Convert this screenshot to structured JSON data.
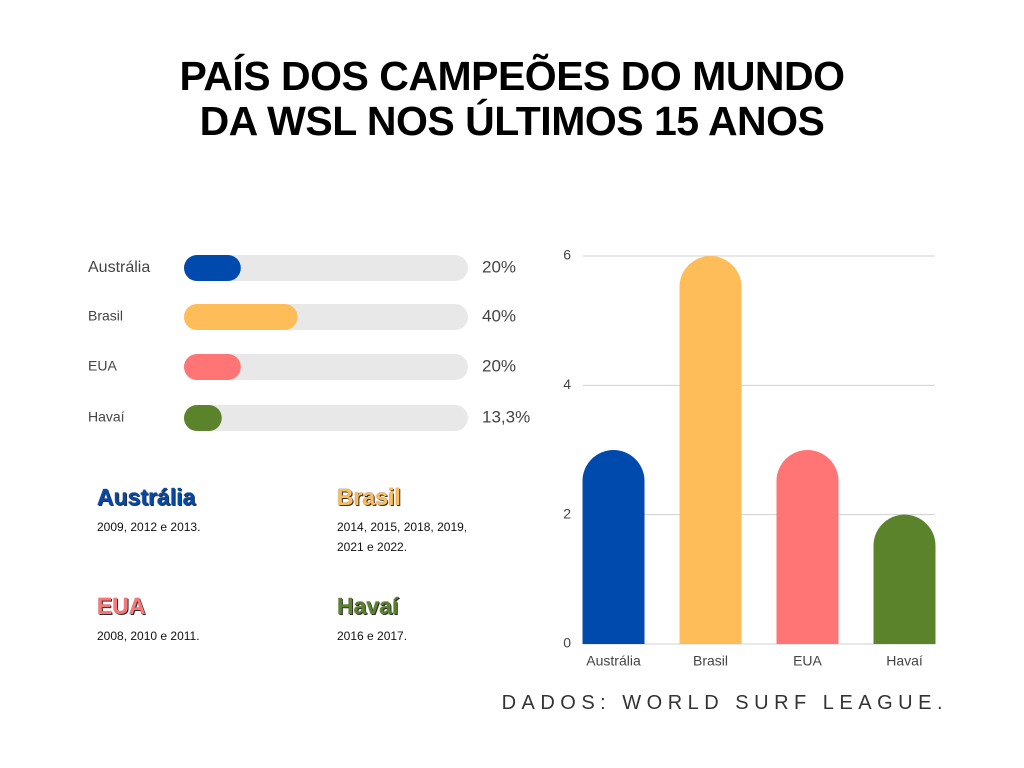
{
  "title": "PAÍS DOS CAMPEÕES DO MUNDO DA WSL NOS ÚLTIMOS 15 ANOS",
  "chart_data": [
    {
      "type": "progress",
      "categories": [
        "Austrália",
        "Brasil",
        "EUA",
        "Havaí"
      ],
      "values": [
        20,
        40,
        20,
        13.3
      ],
      "value_labels": [
        "20%",
        "40%",
        "20%",
        "13,3%"
      ],
      "colors": [
        "#004aad",
        "#ffbd59",
        "#ff7474",
        "#5b832c"
      ],
      "xlim": [
        0,
        100
      ]
    },
    {
      "type": "bar",
      "categories": [
        "Austrália",
        "Brasil",
        "EUA",
        "Havaí"
      ],
      "values": [
        3,
        6,
        3,
        2
      ],
      "colors": [
        "#004aad",
        "#ffbd59",
        "#ff7474",
        "#5b832c"
      ],
      "ylim": [
        0,
        6
      ],
      "yticks": [
        0,
        2,
        4,
        6
      ],
      "grid": true
    }
  ],
  "cards": [
    {
      "name": "Austrália",
      "color": "#004aad",
      "years": "2009, 2012 e 2013."
    },
    {
      "name": "Brasil",
      "color": "#ffbd59",
      "years": "2014, 2015, 2018, 2019, 2021 e 2022."
    },
    {
      "name": "EUA",
      "color": "#ff7474",
      "years": "2008, 2010 e 2011."
    },
    {
      "name": "Havaí",
      "color": "#5b832c",
      "years": "2016 e 2017."
    }
  ],
  "source": "DADOS: WORLD SURF LEAGUE."
}
